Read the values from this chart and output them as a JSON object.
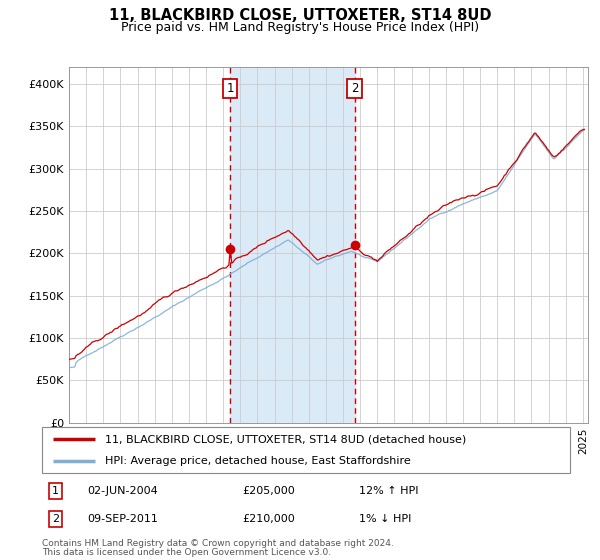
{
  "title": "11, BLACKBIRD CLOSE, UTTOXETER, ST14 8UD",
  "subtitle": "Price paid vs. HM Land Registry's House Price Index (HPI)",
  "ylim": [
    0,
    420000
  ],
  "yticks": [
    0,
    50000,
    100000,
    150000,
    200000,
    250000,
    300000,
    350000,
    400000
  ],
  "ytick_labels": [
    "£0",
    "£50K",
    "£100K",
    "£150K",
    "£200K",
    "£250K",
    "£300K",
    "£350K",
    "£400K"
  ],
  "x_start_year": 1995,
  "x_end_year": 2025,
  "sale1_date": 2004.42,
  "sale1_price": 205000,
  "sale1_label": "1",
  "sale1_hpi_pct": "12% ↑ HPI",
  "sale1_date_str": "02-JUN-2004",
  "sale2_date": 2011.67,
  "sale2_price": 210000,
  "sale2_label": "2",
  "sale2_hpi_pct": "1% ↓ HPI",
  "sale2_date_str": "09-SEP-2011",
  "legend1_label": "11, BLACKBIRD CLOSE, UTTOXETER, ST14 8UD (detached house)",
  "legend2_label": "HPI: Average price, detached house, East Staffordshire",
  "red_line_color": "#cc0000",
  "blue_line_color": "#7fafd4",
  "shade_color": "#daeaf7",
  "dot_color": "#cc0000",
  "grid_color": "#cccccc",
  "bg_color": "#ffffff",
  "footnote1": "Contains HM Land Registry data © Crown copyright and database right 2024.",
  "footnote2": "This data is licensed under the Open Government Licence v3.0."
}
